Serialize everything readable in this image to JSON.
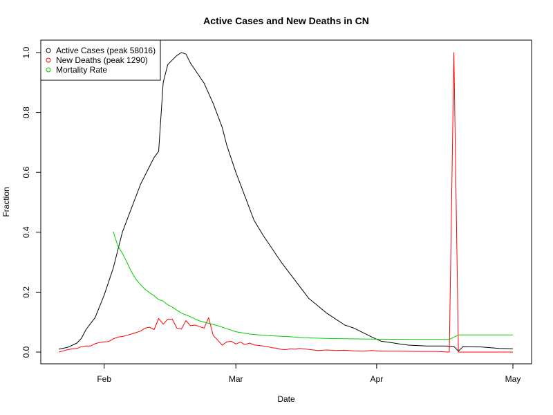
{
  "chart_data": {
    "type": "line",
    "title": "Active Cases and New Deaths in CN",
    "xlabel": "Date",
    "ylabel": "Fraction",
    "xlim": [
      "2020-01-21",
      "2020-05-01"
    ],
    "ylim": [
      0,
      1
    ],
    "x_ticks": [
      {
        "date": "2020-02-01",
        "label": "Feb"
      },
      {
        "date": "2020-03-01",
        "label": "Mar"
      },
      {
        "date": "2020-04-01",
        "label": "Apr"
      },
      {
        "date": "2020-05-01",
        "label": "May"
      }
    ],
    "y_ticks": [
      "0.0",
      "0.2",
      "0.4",
      "0.6",
      "0.8",
      "1.0"
    ],
    "grid": false,
    "legend": {
      "position": "top-left",
      "entries": [
        {
          "label": "Active Cases (peak 58016)",
          "series": "active"
        },
        {
          "label": "New Deaths (peak 1290)",
          "series": "deaths"
        },
        {
          "label": "Mortality Rate",
          "series": "mortality"
        }
      ]
    },
    "series": [
      {
        "key": "active",
        "color": "#000000",
        "points": [
          [
            "2020-01-22",
            0.01
          ],
          [
            "2020-01-24",
            0.016
          ],
          [
            "2020-01-26",
            0.03
          ],
          [
            "2020-01-27",
            0.046
          ],
          [
            "2020-01-28",
            0.075
          ],
          [
            "2020-01-30",
            0.115
          ],
          [
            "2020-02-01",
            0.19
          ],
          [
            "2020-02-03",
            0.28
          ],
          [
            "2020-02-05",
            0.4
          ],
          [
            "2020-02-07",
            0.48
          ],
          [
            "2020-02-09",
            0.56
          ],
          [
            "2020-02-11",
            0.62
          ],
          [
            "2020-02-12",
            0.65
          ],
          [
            "2020-02-13",
            0.67
          ],
          [
            "2020-02-14",
            0.9
          ],
          [
            "2020-02-15",
            0.96
          ],
          [
            "2020-02-16",
            0.975
          ],
          [
            "2020-02-17",
            0.99
          ],
          [
            "2020-02-18",
            1.0
          ],
          [
            "2020-02-19",
            0.995
          ],
          [
            "2020-02-20",
            0.965
          ],
          [
            "2020-02-22",
            0.92
          ],
          [
            "2020-02-23",
            0.898
          ],
          [
            "2020-02-25",
            0.83
          ],
          [
            "2020-02-27",
            0.75
          ],
          [
            "2020-02-28",
            0.69
          ],
          [
            "2020-03-01",
            0.6
          ],
          [
            "2020-03-03",
            0.52
          ],
          [
            "2020-03-05",
            0.44
          ],
          [
            "2020-03-07",
            0.39
          ],
          [
            "2020-03-09",
            0.345
          ],
          [
            "2020-03-11",
            0.3
          ],
          [
            "2020-03-13",
            0.26
          ],
          [
            "2020-03-15",
            0.22
          ],
          [
            "2020-03-17",
            0.18
          ],
          [
            "2020-03-19",
            0.155
          ],
          [
            "2020-03-21",
            0.13
          ],
          [
            "2020-03-23",
            0.11
          ],
          [
            "2020-03-25",
            0.09
          ],
          [
            "2020-03-27",
            0.08
          ],
          [
            "2020-03-29",
            0.065
          ],
          [
            "2020-03-31",
            0.05
          ],
          [
            "2020-04-02",
            0.036
          ],
          [
            "2020-04-04",
            0.032
          ],
          [
            "2020-04-06",
            0.027
          ],
          [
            "2020-04-08",
            0.023
          ],
          [
            "2020-04-12",
            0.02
          ],
          [
            "2020-04-16",
            0.02
          ],
          [
            "2020-04-18",
            0.019
          ],
          [
            "2020-04-19",
            0.003
          ],
          [
            "2020-04-20",
            0.018
          ],
          [
            "2020-04-24",
            0.017
          ],
          [
            "2020-04-28",
            0.012
          ],
          [
            "2020-05-01",
            0.011
          ]
        ]
      },
      {
        "key": "deaths",
        "color": "#ff0000",
        "points": [
          [
            "2020-01-22",
            0.0
          ],
          [
            "2020-01-23",
            0.004
          ],
          [
            "2020-01-24",
            0.008
          ],
          [
            "2020-01-25",
            0.011
          ],
          [
            "2020-01-26",
            0.012
          ],
          [
            "2020-01-27",
            0.018
          ],
          [
            "2020-01-28",
            0.02
          ],
          [
            "2020-01-29",
            0.02
          ],
          [
            "2020-01-30",
            0.028
          ],
          [
            "2020-01-31",
            0.032
          ],
          [
            "2020-02-01",
            0.034
          ],
          [
            "2020-02-02",
            0.035
          ],
          [
            "2020-02-03",
            0.044
          ],
          [
            "2020-02-04",
            0.05
          ],
          [
            "2020-02-05",
            0.052
          ],
          [
            "2020-02-06",
            0.056
          ],
          [
            "2020-02-07",
            0.06
          ],
          [
            "2020-02-08",
            0.065
          ],
          [
            "2020-02-09",
            0.07
          ],
          [
            "2020-02-10",
            0.08
          ],
          [
            "2020-02-11",
            0.083
          ],
          [
            "2020-02-12",
            0.075
          ],
          [
            "2020-02-13",
            0.112
          ],
          [
            "2020-02-14",
            0.093
          ],
          [
            "2020-02-15",
            0.11
          ],
          [
            "2020-02-16",
            0.11
          ],
          [
            "2020-02-17",
            0.08
          ],
          [
            "2020-02-18",
            0.077
          ],
          [
            "2020-02-19",
            0.105
          ],
          [
            "2020-02-20",
            0.088
          ],
          [
            "2020-02-21",
            0.09
          ],
          [
            "2020-02-22",
            0.085
          ],
          [
            "2020-02-23",
            0.08
          ],
          [
            "2020-02-24",
            0.115
          ],
          [
            "2020-02-25",
            0.056
          ],
          [
            "2020-02-26",
            0.04
          ],
          [
            "2020-02-27",
            0.023
          ],
          [
            "2020-02-28",
            0.034
          ],
          [
            "2020-02-29",
            0.036
          ],
          [
            "2020-03-01",
            0.027
          ],
          [
            "2020-03-02",
            0.033
          ],
          [
            "2020-03-03",
            0.025
          ],
          [
            "2020-03-04",
            0.03
          ],
          [
            "2020-03-05",
            0.024
          ],
          [
            "2020-03-06",
            0.022
          ],
          [
            "2020-03-07",
            0.02
          ],
          [
            "2020-03-08",
            0.018
          ],
          [
            "2020-03-09",
            0.014
          ],
          [
            "2020-03-10",
            0.013
          ],
          [
            "2020-03-11",
            0.009
          ],
          [
            "2020-03-12",
            0.008
          ],
          [
            "2020-03-13",
            0.011
          ],
          [
            "2020-03-14",
            0.01
          ],
          [
            "2020-03-15",
            0.012
          ],
          [
            "2020-03-17",
            0.009
          ],
          [
            "2020-03-19",
            0.005
          ],
          [
            "2020-03-21",
            0.007
          ],
          [
            "2020-03-23",
            0.005
          ],
          [
            "2020-03-25",
            0.006
          ],
          [
            "2020-03-27",
            0.004
          ],
          [
            "2020-03-29",
            0.003
          ],
          [
            "2020-03-31",
            0.005
          ],
          [
            "2020-04-02",
            0.003
          ],
          [
            "2020-04-06",
            0.003
          ],
          [
            "2020-04-10",
            0.002
          ],
          [
            "2020-04-14",
            0.002
          ],
          [
            "2020-04-17",
            0.0
          ],
          [
            "2020-04-18",
            1.0
          ],
          [
            "2020-04-19",
            0.0
          ],
          [
            "2020-04-25",
            0.0
          ],
          [
            "2020-05-01",
            0.0
          ]
        ]
      },
      {
        "key": "mortality",
        "color": "#00cd00",
        "points": [
          [
            "2020-02-03",
            0.402
          ],
          [
            "2020-02-04",
            0.355
          ],
          [
            "2020-02-05",
            0.33
          ],
          [
            "2020-02-06",
            0.3
          ],
          [
            "2020-02-07",
            0.268
          ],
          [
            "2020-02-08",
            0.243
          ],
          [
            "2020-02-09",
            0.225
          ],
          [
            "2020-02-10",
            0.21
          ],
          [
            "2020-02-11",
            0.198
          ],
          [
            "2020-02-12",
            0.188
          ],
          [
            "2020-02-13",
            0.175
          ],
          [
            "2020-02-14",
            0.17
          ],
          [
            "2020-02-15",
            0.158
          ],
          [
            "2020-02-16",
            0.15
          ],
          [
            "2020-02-17",
            0.14
          ],
          [
            "2020-02-18",
            0.13
          ],
          [
            "2020-02-20",
            0.118
          ],
          [
            "2020-02-22",
            0.104
          ],
          [
            "2020-02-24",
            0.096
          ],
          [
            "2020-02-26",
            0.088
          ],
          [
            "2020-02-28",
            0.078
          ],
          [
            "2020-03-01",
            0.068
          ],
          [
            "2020-03-04",
            0.06
          ],
          [
            "2020-03-08",
            0.055
          ],
          [
            "2020-03-12",
            0.052
          ],
          [
            "2020-03-16",
            0.048
          ],
          [
            "2020-03-22",
            0.045
          ],
          [
            "2020-04-01",
            0.043
          ],
          [
            "2020-04-10",
            0.042
          ],
          [
            "2020-04-17",
            0.042
          ],
          [
            "2020-04-18",
            0.05
          ],
          [
            "2020-04-19",
            0.057
          ],
          [
            "2020-05-01",
            0.057
          ]
        ]
      }
    ]
  }
}
